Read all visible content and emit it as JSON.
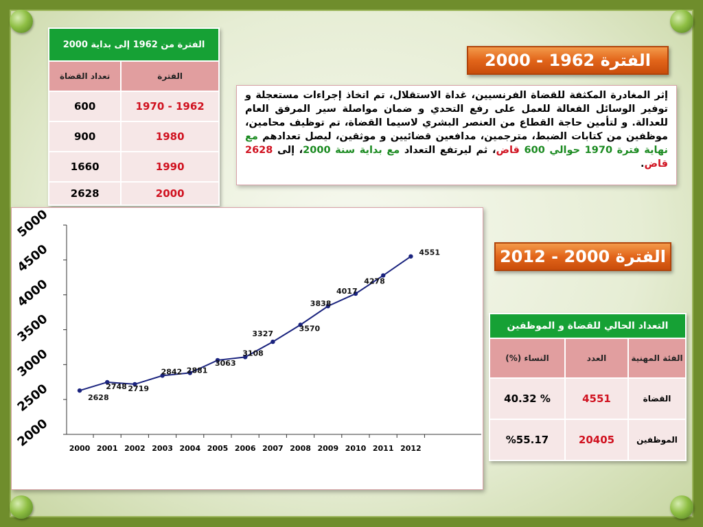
{
  "banner_1962": "الفترة 1962 - 2000",
  "banner_2000": "الفترة 2000 - 2012",
  "paragraph": {
    "p1": "إثر المغادرة المكثفة للقضاة الفرنسيين، غداة الاستقلال، تم اتخاذ إجراءات مستعجلة و توفير الوسائل الفعالة للعمل على رفع التحدي و ضمان مواصلة سير المرفق العام للعدالة. و لتأمين حاجة القطاع من العنصر البشري لاسيما القضاة، تم توظيف محامين، موظفين من كتابات الضبط، مترجمين، مدافعين قضائيين و موثقين، ليصل تعدادهم ",
    "p2": "مع نهاية فترة 1970",
    "p3": " ",
    "p4": "حوالي 600",
    "p5": " ",
    "p6": "قاض",
    "p7": "، ثم ليرتفع التعداد ",
    "p8": "مع بداية سنة 2000",
    "p9": "، إلى ",
    "p10": "2628 قاض",
    "p11": "."
  },
  "table1": {
    "title": "الفترة من 1962 إلى بداية 2000",
    "col_period": "الفترة",
    "col_judges": "تعداد القضاة",
    "rows": [
      {
        "period": "1962 - 1970",
        "count": "600"
      },
      {
        "period": "1980",
        "count": "900"
      },
      {
        "period": "1990",
        "count": "1660"
      },
      {
        "period": "2000",
        "count": "2628"
      }
    ]
  },
  "table2": {
    "title": "التعداد الحالي للقضاة و الموظفين",
    "col_category": "الفئة المهنية",
    "col_count": "العدد",
    "col_women": "النساء (%)",
    "rows": [
      {
        "category": "القضاة",
        "count": "4551",
        "women": "% 40.32"
      },
      {
        "category": "الموظفين",
        "count": "20405",
        "women": "%55.17"
      }
    ]
  },
  "chart_data": {
    "type": "line",
    "x": [
      "2000",
      "2001",
      "2002",
      "2003",
      "2004",
      "2005",
      "2006",
      "2007",
      "2008",
      "2009",
      "2010",
      "2011",
      "2012"
    ],
    "series": [
      {
        "values": [
          2628,
          2748,
          2719,
          2842,
          2881,
          3063,
          3108,
          3327,
          3570,
          3838,
          4017,
          4278,
          4551
        ]
      }
    ],
    "point_labels": [
      "2628",
      "2748",
      "2719",
      "2842",
      "2881",
      "3063",
      "3108",
      "3327",
      "3570",
      "3838",
      "4017",
      "4278",
      "4551"
    ],
    "y_ticks": [
      "2000",
      "2500",
      "3000",
      "3500",
      "4000",
      "4500",
      "5000"
    ],
    "ylim": [
      2000,
      5000
    ],
    "line_color": "#1a237e",
    "grid": false
  }
}
